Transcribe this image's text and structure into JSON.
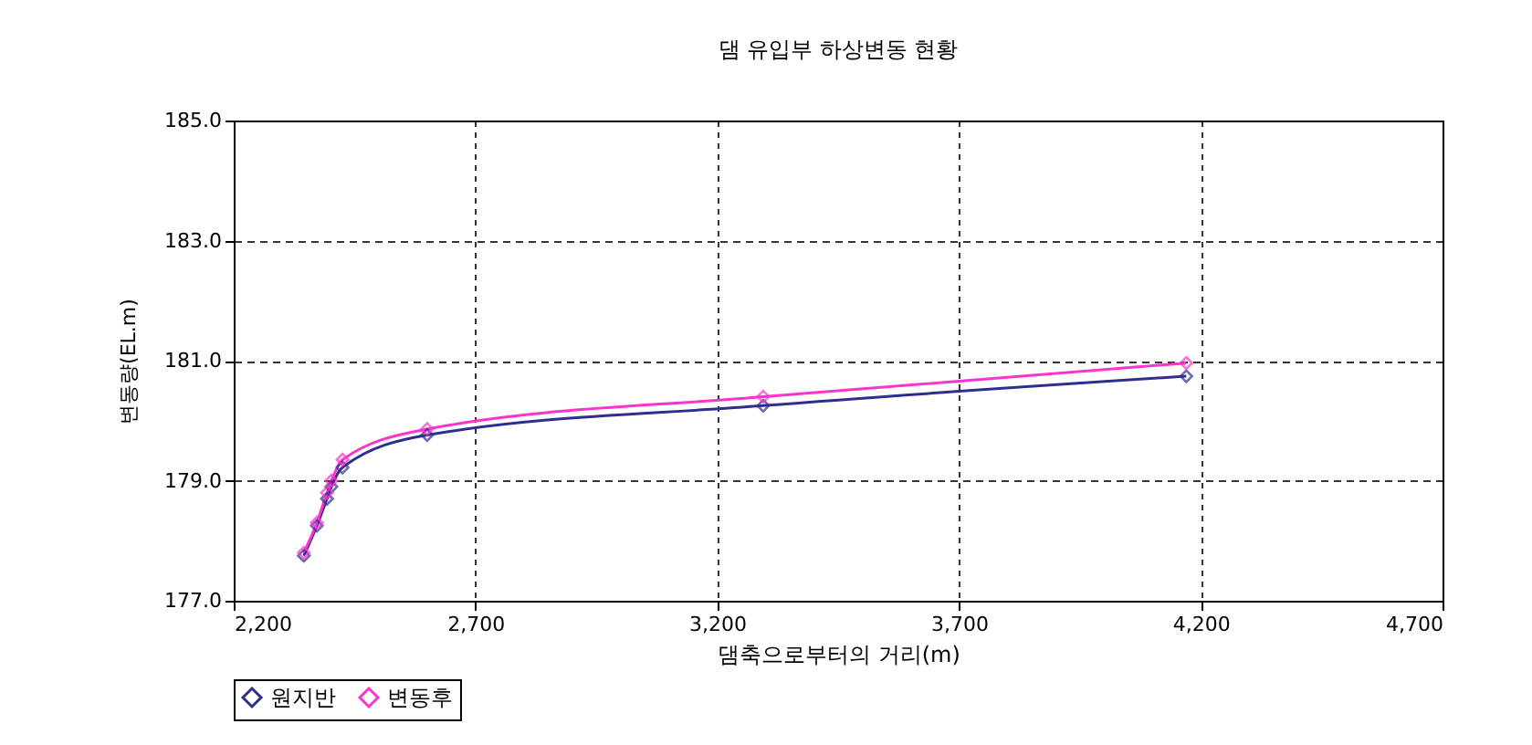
{
  "chart_data": {
    "type": "line",
    "title": "댐 유입부 하상변동 현황",
    "xlabel": "댐축으로부터의 거리(m)",
    "ylabel": "변동량(EL.m)",
    "x": [
      2345,
      2372,
      2393,
      2402,
      2425,
      2600,
      3295,
      4170
    ],
    "series": [
      {
        "name": "원지반",
        "color": "#2e2e8f",
        "values": [
          177.75,
          178.25,
          178.7,
          178.9,
          179.22,
          179.76,
          180.25,
          180.74
        ]
      },
      {
        "name": "변동후",
        "color": "#ff33cc",
        "values": [
          177.8,
          178.3,
          178.8,
          179.0,
          179.35,
          179.86,
          180.4,
          180.96
        ]
      }
    ],
    "xlim": [
      2200,
      4700
    ],
    "xticks": [
      {
        "value": 2200,
        "label": "2,200"
      },
      {
        "value": 2700,
        "label": "2,700"
      },
      {
        "value": 3200,
        "label": "3,200"
      },
      {
        "value": 3700,
        "label": "3,700"
      },
      {
        "value": 4200,
        "label": "4,200"
      },
      {
        "value": 4700,
        "label": "4,700"
      }
    ],
    "ylim": [
      177,
      185
    ],
    "yticks": [
      {
        "value": 177,
        "label": "177.0"
      },
      {
        "value": 179,
        "label": "179.0"
      },
      {
        "value": 181,
        "label": "181.0"
      },
      {
        "value": 183,
        "label": "183.0"
      },
      {
        "value": 185,
        "label": "185.0"
      }
    ],
    "grid": true,
    "legend": "bottom",
    "marker": "diamond",
    "line_style": "solid"
  }
}
